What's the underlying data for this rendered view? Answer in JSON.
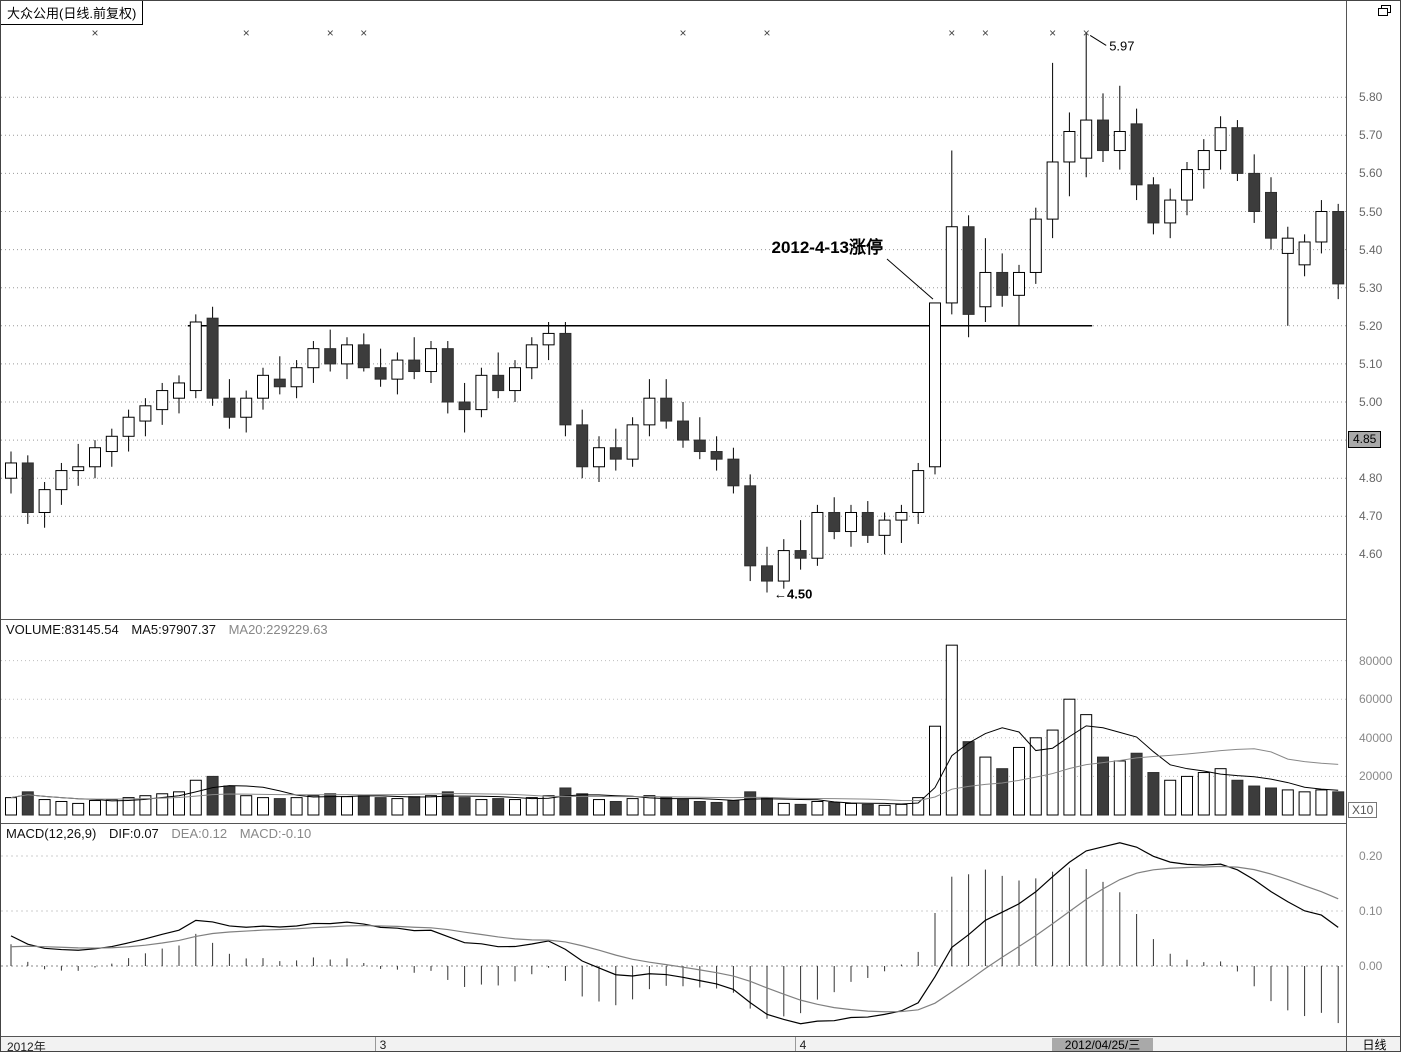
{
  "window": {
    "title": "大众公用(日线.前复权)"
  },
  "x_axis": {
    "year_label": "2012年",
    "month_ticks": [
      {
        "label": "3",
        "index": 22
      },
      {
        "label": "4",
        "index": 47
      }
    ],
    "highlight_date": "2012/04/25/三",
    "period_label": "日线"
  },
  "chart_data": {
    "type": "candlestick",
    "title": "大众公用(日线.前复权)",
    "panels": [
      "price",
      "volume",
      "macd"
    ],
    "price_ylim": [
      4.43,
      6.0
    ],
    "price_gridlines": [
      5.8,
      5.7,
      5.6,
      5.5,
      5.4,
      5.3,
      5.2,
      5.1,
      5.0,
      4.9,
      4.8,
      4.7,
      4.6
    ],
    "highlight_price_label": "4.85",
    "volume_ylim": [
      0,
      101500
    ],
    "volume_gridlines": [
      20000,
      40000,
      60000,
      80000
    ],
    "volume_unit": "X10",
    "macd_params": [
      12,
      26,
      9
    ],
    "macd_ylim": [
      -0.13,
      0.26
    ],
    "macd_gridlines": [
      0.0,
      0.1,
      0.2
    ],
    "resistance_line": {
      "price": 5.2,
      "from_index": 11,
      "to_index": 64
    },
    "annotations": {
      "limit_up": {
        "text": "2012-4-13涨停",
        "candle_index": 55
      },
      "peak": {
        "text": "5.97",
        "candle_index": 64,
        "price": 5.97
      },
      "trough": {
        "text": "←4.50",
        "candle_index": 45,
        "price": 4.5
      }
    },
    "event_marker_indices": [
      5,
      14,
      19,
      21,
      40,
      45,
      56,
      58,
      62,
      64
    ],
    "indicator_text": {
      "volume": "VOLUME:83145.54",
      "ma5": "MA5:97907.37",
      "ma20": "MA20:229229.63",
      "macd_title": "MACD(12,26,9)",
      "dif": "DIF:0.07",
      "dea": "DEA:0.12",
      "macd": "MACD:-0.10"
    },
    "candles": [
      [
        4.8,
        4.87,
        4.76,
        4.84
      ],
      [
        4.84,
        4.86,
        4.68,
        4.71
      ],
      [
        4.71,
        4.79,
        4.67,
        4.77
      ],
      [
        4.77,
        4.84,
        4.73,
        4.82
      ],
      [
        4.82,
        4.89,
        4.78,
        4.83
      ],
      [
        4.83,
        4.9,
        4.8,
        4.88
      ],
      [
        4.87,
        4.93,
        4.83,
        4.91
      ],
      [
        4.91,
        4.98,
        4.87,
        4.96
      ],
      [
        4.95,
        5.01,
        4.91,
        4.99
      ],
      [
        4.98,
        5.05,
        4.94,
        5.03
      ],
      [
        5.01,
        5.07,
        4.97,
        5.05
      ],
      [
        5.03,
        5.23,
        5.01,
        5.21
      ],
      [
        5.22,
        5.25,
        4.99,
        5.01
      ],
      [
        5.01,
        5.06,
        4.93,
        4.96
      ],
      [
        4.96,
        5.03,
        4.92,
        5.01
      ],
      [
        5.01,
        5.09,
        4.98,
        5.07
      ],
      [
        5.06,
        5.12,
        5.02,
        5.04
      ],
      [
        5.04,
        5.11,
        5.01,
        5.09
      ],
      [
        5.09,
        5.16,
        5.05,
        5.14
      ],
      [
        5.14,
        5.19,
        5.08,
        5.1
      ],
      [
        5.1,
        5.17,
        5.06,
        5.15
      ],
      [
        5.15,
        5.18,
        5.08,
        5.09
      ],
      [
        5.09,
        5.14,
        5.04,
        5.06
      ],
      [
        5.06,
        5.13,
        5.02,
        5.11
      ],
      [
        5.11,
        5.17,
        5.06,
        5.08
      ],
      [
        5.08,
        5.16,
        5.05,
        5.14
      ],
      [
        5.14,
        5.16,
        4.97,
        5.0
      ],
      [
        5.0,
        5.05,
        4.92,
        4.98
      ],
      [
        4.98,
        5.09,
        4.96,
        5.07
      ],
      [
        5.07,
        5.13,
        5.01,
        5.03
      ],
      [
        5.03,
        5.11,
        5.0,
        5.09
      ],
      [
        5.09,
        5.17,
        5.06,
        5.15
      ],
      [
        5.15,
        5.21,
        5.11,
        5.18
      ],
      [
        5.18,
        5.21,
        4.91,
        4.94
      ],
      [
        4.94,
        4.98,
        4.8,
        4.83
      ],
      [
        4.83,
        4.91,
        4.79,
        4.88
      ],
      [
        4.88,
        4.93,
        4.82,
        4.85
      ],
      [
        4.85,
        4.96,
        4.83,
        4.94
      ],
      [
        4.94,
        5.06,
        4.91,
        5.01
      ],
      [
        5.01,
        5.06,
        4.93,
        4.95
      ],
      [
        4.95,
        5.0,
        4.88,
        4.9
      ],
      [
        4.9,
        4.96,
        4.85,
        4.87
      ],
      [
        4.87,
        4.91,
        4.82,
        4.85
      ],
      [
        4.85,
        4.88,
        4.76,
        4.78
      ],
      [
        4.78,
        4.81,
        4.53,
        4.57
      ],
      [
        4.57,
        4.62,
        4.5,
        4.53
      ],
      [
        4.53,
        4.64,
        4.51,
        4.61
      ],
      [
        4.61,
        4.69,
        4.56,
        4.59
      ],
      [
        4.59,
        4.73,
        4.57,
        4.71
      ],
      [
        4.71,
        4.75,
        4.64,
        4.66
      ],
      [
        4.66,
        4.73,
        4.62,
        4.71
      ],
      [
        4.71,
        4.74,
        4.63,
        4.65
      ],
      [
        4.65,
        4.71,
        4.6,
        4.69
      ],
      [
        4.69,
        4.73,
        4.63,
        4.71
      ],
      [
        4.71,
        4.84,
        4.68,
        4.82
      ],
      [
        4.83,
        5.26,
        4.81,
        5.26
      ],
      [
        5.26,
        5.66,
        5.23,
        5.46
      ],
      [
        5.46,
        5.49,
        5.17,
        5.23
      ],
      [
        5.25,
        5.43,
        5.21,
        5.34
      ],
      [
        5.34,
        5.39,
        5.25,
        5.28
      ],
      [
        5.28,
        5.36,
        5.2,
        5.34
      ],
      [
        5.34,
        5.51,
        5.31,
        5.48
      ],
      [
        5.48,
        5.89,
        5.43,
        5.63
      ],
      [
        5.63,
        5.76,
        5.54,
        5.71
      ],
      [
        5.64,
        5.97,
        5.59,
        5.74
      ],
      [
        5.74,
        5.81,
        5.63,
        5.66
      ],
      [
        5.66,
        5.83,
        5.61,
        5.71
      ],
      [
        5.73,
        5.77,
        5.53,
        5.57
      ],
      [
        5.57,
        5.59,
        5.44,
        5.47
      ],
      [
        5.47,
        5.56,
        5.43,
        5.53
      ],
      [
        5.53,
        5.63,
        5.49,
        5.61
      ],
      [
        5.61,
        5.69,
        5.56,
        5.66
      ],
      [
        5.66,
        5.75,
        5.61,
        5.72
      ],
      [
        5.72,
        5.74,
        5.58,
        5.6
      ],
      [
        5.6,
        5.65,
        5.47,
        5.5
      ],
      [
        5.55,
        5.59,
        5.4,
        5.43
      ],
      [
        5.39,
        5.46,
        5.2,
        5.43
      ],
      [
        5.36,
        5.44,
        5.33,
        5.42
      ],
      [
        5.42,
        5.53,
        5.39,
        5.5
      ],
      [
        5.5,
        5.52,
        5.27,
        5.31
      ]
    ],
    "volume": [
      9000,
      12000,
      8000,
      7000,
      6000,
      7500,
      8000,
      9000,
      10000,
      11000,
      12000,
      18000,
      20000,
      15000,
      10000,
      9000,
      8500,
      9000,
      10000,
      11000,
      9500,
      10000,
      9000,
      8500,
      9500,
      10000,
      12000,
      9000,
      8000,
      8500,
      8000,
      9000,
      10000,
      14000,
      11000,
      8000,
      7000,
      8500,
      10000,
      9000,
      8000,
      7000,
      6500,
      7500,
      12000,
      9000,
      6000,
      5500,
      7000,
      6500,
      6000,
      5500,
      5000,
      5500,
      9000,
      46000,
      88000,
      38000,
      30000,
      24000,
      35000,
      40000,
      44000,
      60000,
      52000,
      30000,
      28000,
      32000,
      22000,
      18000,
      20000,
      22000,
      24000,
      18000,
      15000,
      14000,
      13000,
      12000,
      13000,
      12000
    ]
  }
}
